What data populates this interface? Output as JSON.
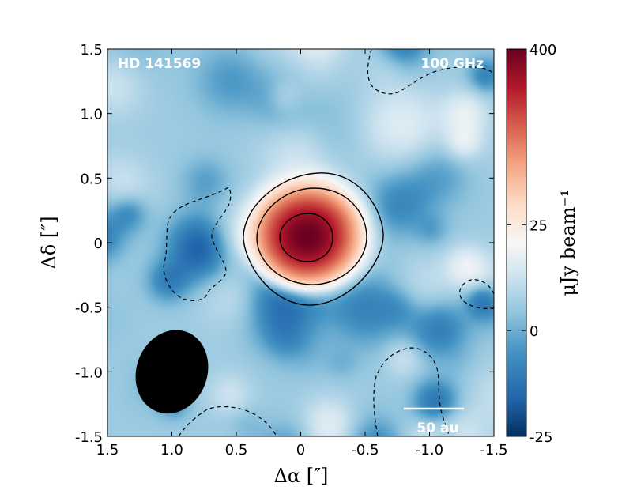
{
  "chart_data": {
    "type": "heatmap",
    "object_label": "HD 141569",
    "frequency_label": "100 GHz",
    "xlabel": "Δα [″]",
    "ylabel": "Δδ [″]",
    "xlim": [
      1.5,
      -1.5
    ],
    "ylim": [
      -1.5,
      1.5
    ],
    "x_ticks": [
      {
        "value": 1.5,
        "label": "1.5"
      },
      {
        "value": 1.0,
        "label": "1.0"
      },
      {
        "value": 0.5,
        "label": "0.5"
      },
      {
        "value": 0.0,
        "label": "0"
      },
      {
        "value": -0.5,
        "label": "-0.5"
      },
      {
        "value": -1.0,
        "label": "-1.0"
      },
      {
        "value": -1.5,
        "label": "-1.5"
      }
    ],
    "y_ticks": [
      {
        "value": 1.5,
        "label": "1.5"
      },
      {
        "value": 1.0,
        "label": "1.0"
      },
      {
        "value": 0.5,
        "label": "0.5"
      },
      {
        "value": 0.0,
        "label": "0"
      },
      {
        "value": -0.5,
        "label": "-0.5"
      },
      {
        "value": -1.0,
        "label": "-1.0"
      },
      {
        "value": -1.5,
        "label": "-1.5"
      }
    ],
    "colorbar": {
      "label": "μJy  beam⁻¹",
      "min": -25,
      "max": 400,
      "cmap": "RdBu_r",
      "ticks": [
        {
          "value": 400,
          "label": "400"
        },
        {
          "value": 25,
          "label": "25"
        },
        {
          "value": 0,
          "label": "0"
        },
        {
          "value": -25,
          "label": "-25"
        }
      ]
    },
    "source": {
      "x": -0.05,
      "y": 0.05,
      "peak": 400
    },
    "contours": {
      "solid_levels": [
        30,
        90,
        250
      ],
      "dashed_levels": [
        -8
      ]
    },
    "beam": {
      "center": [
        1.0,
        -1.0
      ],
      "major": 0.66,
      "minor": 0.55,
      "pa_deg": 20
    },
    "scale_bar": {
      "label": "50 au"
    },
    "colors": {
      "cmap_low": "#053061",
      "cmap_mid": "#f7f7f7",
      "cmap_high": "#67001f",
      "overlay_text": "#ffffff"
    }
  }
}
